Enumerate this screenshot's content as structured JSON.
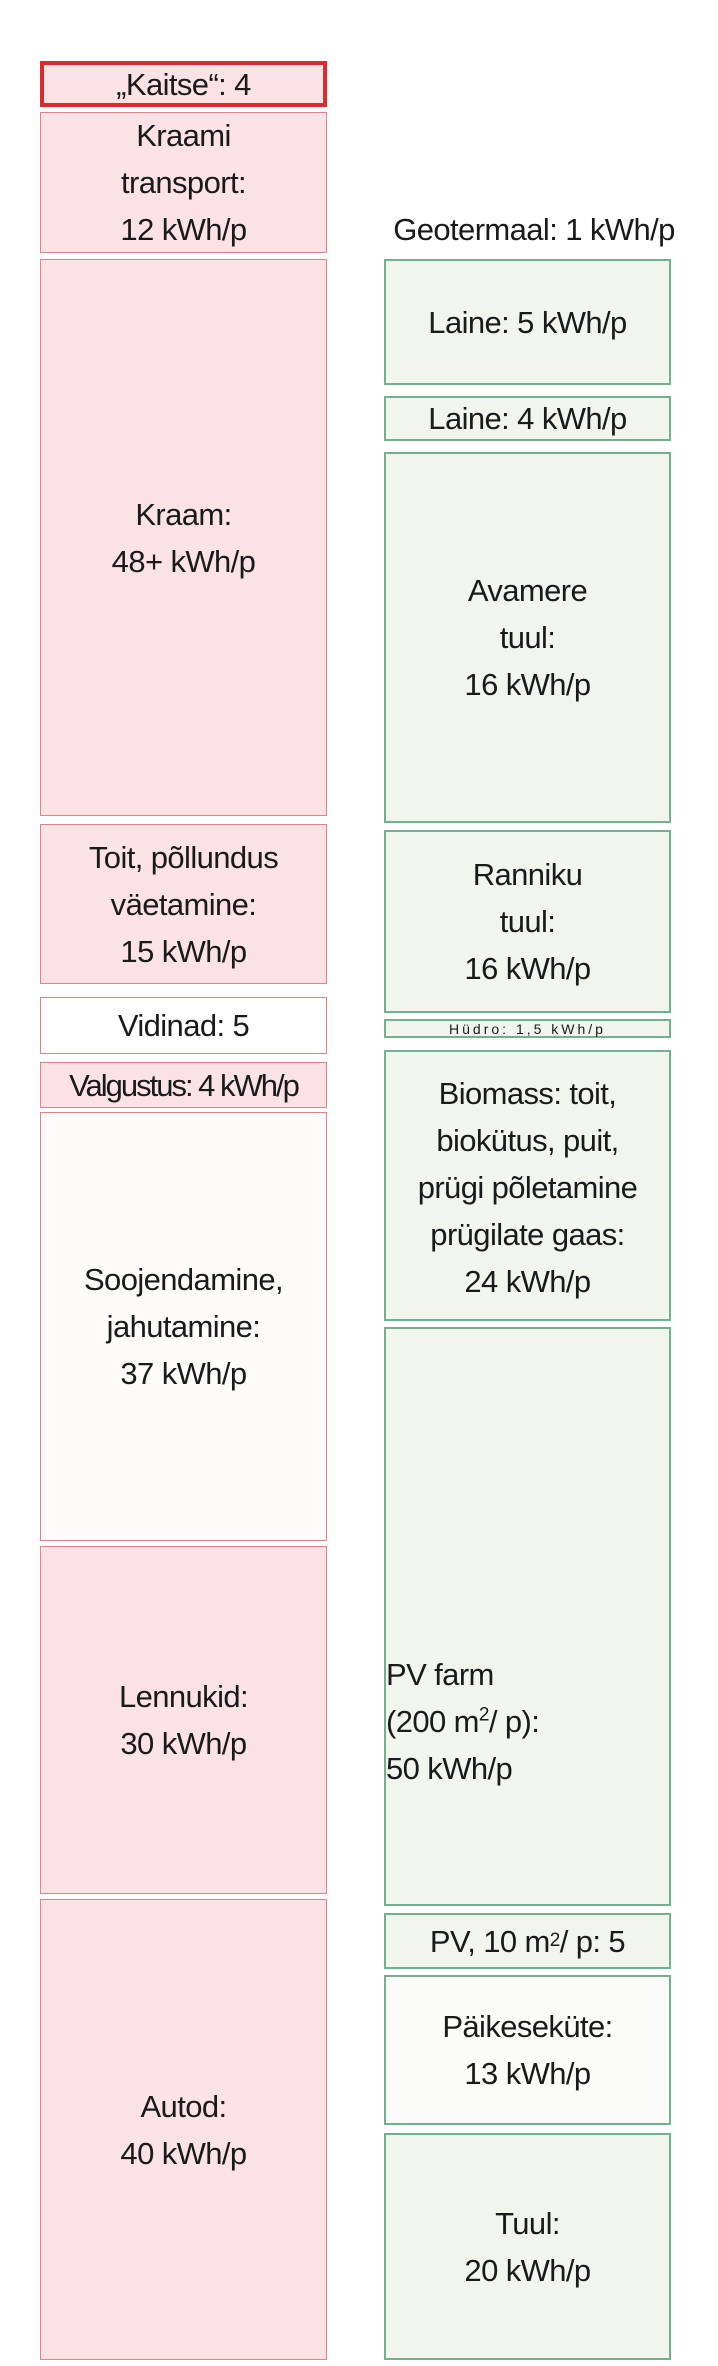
{
  "colors": {
    "demand_fill": "#fbe3e5",
    "demand_border": "#e08088",
    "highlight_border": "#dd2a2e",
    "supply_fill": "#f1f5ee",
    "supply_border": "#72b08f"
  },
  "demand": {
    "kaitse": "„Kaitse“: 4",
    "kraami_transport": "Kraami\ntransport:\n12 kWh/p",
    "kraam": "Kraam:\n48+ kWh/p",
    "toit": "Toit, põllundus\nväetamine:\n15 kWh/p",
    "vidinad": "Vidinad: 5",
    "valgustus": "Valgustus: 4 kWh/p",
    "soojendamine": "Soojendamine,\njahutamine:\n37 kWh/p",
    "lennukid": "Lennukid:\n30 kWh/p",
    "autod": "Autod:\n40 kWh/p"
  },
  "supply": {
    "geotermaal": "Geotermaal: 1 kWh/p",
    "laine5": "Laine: 5 kWh/p",
    "laine4": "Laine: 4 kWh/p",
    "avamere": "Avamere\ntuul:\n16 kWh/p",
    "ranniku": "Ranniku\ntuul:\n16 kWh/p",
    "hydro": "Hüdro: 1,5 kWh/p",
    "biomass": "Biomass: toit,\nbiokütus, puit,\nprügi põletamine\nprügilate gaas:\n24 kWh/p",
    "pv_farm": {
      "line1": "PV  farm",
      "line2a": "(200 m",
      "sup": "2",
      "line2b": "/ p):",
      "line3": "50 kWh/p"
    },
    "pv10": {
      "a": "PV, 10 m",
      "sup": "2",
      "b": "/ p: 5"
    },
    "paikese": "Päikeseküte:\n13 kWh/p",
    "tuul": "Tuul:\n20 kWh/p"
  }
}
